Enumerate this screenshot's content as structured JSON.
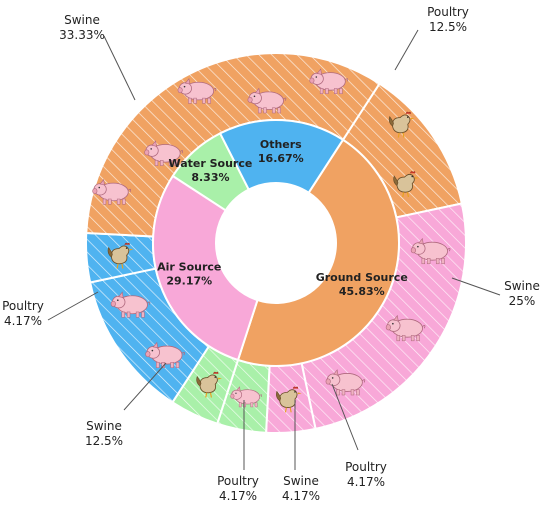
{
  "chart_data": {
    "type": "pie",
    "subtype": "nested-donut",
    "inner": [
      {
        "name": "Ground Source",
        "value": 45.83,
        "label": "45.83%",
        "color": "#f0a262"
      },
      {
        "name": "Air Source",
        "value": 29.17,
        "label": "29.17%",
        "color": "#f8a8d8"
      },
      {
        "name": "Water Source",
        "value": 8.33,
        "label": "8.33%",
        "color": "#a9f0a9"
      },
      {
        "name": "Others",
        "value": 16.67,
        "label": "16.67%",
        "color": "#4fb3f0"
      }
    ],
    "outer": [
      {
        "name": "Poultry",
        "value": 12.5,
        "label": "12.5%",
        "parent": "Ground Source",
        "icon": "chicken-icon",
        "icon_count": 2
      },
      {
        "name": "Swine",
        "value": 25,
        "label": "25%",
        "parent": "Air Source",
        "icon": "pig-icon",
        "icon_count": 3
      },
      {
        "name": "Poultry",
        "value": 4.17,
        "label": "4.17%",
        "parent": "Air Source",
        "icon": "chicken-icon",
        "icon_count": 1
      },
      {
        "name": "Swine",
        "value": 4.17,
        "label": "4.17%",
        "parent": "Water Source",
        "icon": "pig-icon",
        "icon_count": 1
      },
      {
        "name": "Poultry",
        "value": 4.17,
        "label": "4.17%",
        "parent": "Water Source",
        "icon": "chicken-icon",
        "icon_count": 1
      },
      {
        "name": "Swine",
        "value": 12.5,
        "label": "12.5%",
        "parent": "Others",
        "icon": "pig-icon",
        "icon_count": 2
      },
      {
        "name": "Poultry",
        "value": 4.17,
        "label": "4.17%",
        "parent": "Others",
        "icon": "chicken-icon",
        "icon_count": 1
      },
      {
        "name": "Swine",
        "value": 33.33,
        "label": "33.33%",
        "parent": "Ground Source",
        "icon": "pig-icon",
        "icon_count": 5
      }
    ],
    "pattern": "diagonal-hatch"
  }
}
